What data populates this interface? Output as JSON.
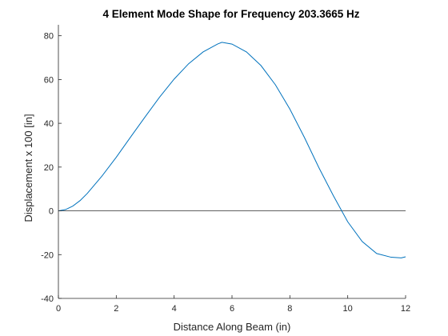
{
  "chart_data": {
    "type": "line",
    "title": "4 Element Mode Shape for Frequency 203.3665 Hz",
    "xlabel": "Distance Along Beam (in)",
    "ylabel": "Displacement x 100 [in]",
    "xlim": [
      0,
      12
    ],
    "ylim": [
      -40,
      85
    ],
    "xticks": [
      0,
      2,
      4,
      6,
      8,
      10,
      12
    ],
    "yticks": [
      -40,
      -20,
      0,
      20,
      40,
      60,
      80
    ],
    "xtick_labels": [
      "0",
      "2",
      "4",
      "6",
      "8",
      "10",
      "12"
    ],
    "ytick_labels": [
      "-40",
      "-20",
      "0",
      "20",
      "40",
      "60",
      "80"
    ],
    "grid": false,
    "colors": {
      "series": "#0072bd",
      "axis": "#262626",
      "zero_line": "#000000"
    },
    "reference_line": {
      "y": 0
    },
    "series": [
      {
        "x": [
          0,
          0.25,
          0.5,
          0.75,
          1,
          1.5,
          2,
          2.5,
          3,
          3.5,
          4,
          4.5,
          5,
          5.5,
          5.65,
          6,
          6.5,
          7,
          7.5,
          8,
          8.5,
          9,
          9.5,
          10,
          10.5,
          11,
          11.5,
          11.85,
          12
        ],
        "values": [
          0,
          0.6,
          2.2,
          4.7,
          8,
          15.8,
          24.5,
          33.8,
          43,
          52,
          60.2,
          67.2,
          72.6,
          76.2,
          77,
          76.2,
          72.6,
          66.4,
          57.6,
          46.5,
          33.6,
          19.8,
          7,
          -5,
          -14,
          -19.5,
          -21.2,
          -21.5,
          -21
        ]
      }
    ]
  }
}
